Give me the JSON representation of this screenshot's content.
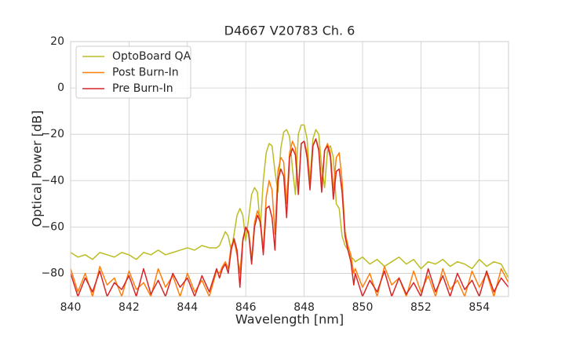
{
  "chart_data": {
    "type": "line",
    "title": "D4667 V20783 Ch. 6",
    "x_label": "Wavelength [nm]",
    "y_label": "Optical Power [dB]",
    "x": [
      840,
      840.25,
      840.5,
      840.75,
      841,
      841.25,
      841.5,
      841.75,
      842,
      842.25,
      842.5,
      842.75,
      843,
      843.25,
      843.5,
      843.75,
      844,
      844.25,
      844.5,
      844.75,
      845,
      845.1,
      845.2,
      845.3,
      845.4,
      845.5,
      845.6,
      845.7,
      845.8,
      845.9,
      846,
      846.1,
      846.2,
      846.3,
      846.4,
      846.5,
      846.6,
      846.7,
      846.8,
      846.9,
      847,
      847.1,
      847.2,
      847.3,
      847.4,
      847.5,
      847.6,
      847.7,
      847.8,
      847.9,
      848,
      848.1,
      848.2,
      848.3,
      848.4,
      848.5,
      848.6,
      848.7,
      848.8,
      848.9,
      849,
      849.1,
      849.2,
      849.3,
      849.4,
      849.5,
      849.6,
      849.7,
      849.75,
      850,
      850.25,
      850.5,
      850.75,
      851,
      851.25,
      851.5,
      851.75,
      852,
      852.25,
      852.5,
      852.75,
      853,
      853.25,
      853.5,
      853.75,
      854,
      854.25,
      854.5,
      854.75,
      855
    ],
    "series": [
      {
        "name": "OptoBoard QA",
        "color": "#bcbd22",
        "values": [
          -71,
          -73,
          -72,
          -74,
          -71,
          -72,
          -73,
          -71,
          -72,
          -74,
          -71,
          -72,
          -70,
          -72,
          -71,
          -70,
          -69,
          -70,
          -68,
          -69,
          -69,
          -68,
          -65,
          -62,
          -64,
          -70,
          -63,
          -55,
          -52,
          -55,
          -66,
          -56,
          -46,
          -43,
          -45,
          -60,
          -40,
          -28,
          -24,
          -25,
          -36,
          -45,
          -26,
          -19,
          -18,
          -21,
          -35,
          -46,
          -20,
          -16,
          -16,
          -22,
          -40,
          -22,
          -18,
          -20,
          -34,
          -43,
          -27,
          -25,
          -30,
          -50,
          -52,
          -64,
          -68,
          -70,
          -73,
          -74,
          -75,
          -73,
          -76,
          -74,
          -77,
          -75,
          -73,
          -76,
          -74,
          -78,
          -75,
          -76,
          -74,
          -77,
          -75,
          -76,
          -78,
          -74,
          -77,
          -75,
          -76,
          -82
        ]
      },
      {
        "name": "Post Burn-In",
        "color": "#ff7f0e",
        "values": [
          -78,
          -88,
          -80,
          -90,
          -77,
          -85,
          -82,
          -90,
          -79,
          -87,
          -84,
          -90,
          -78,
          -86,
          -81,
          -90,
          -80,
          -88,
          -83,
          -90,
          -79,
          -80,
          -77,
          -75,
          -78,
          -68,
          -66,
          -72,
          -80,
          -65,
          -60,
          -62,
          -74,
          -58,
          -53,
          -57,
          -70,
          -47,
          -40,
          -44,
          -63,
          -36,
          -30,
          -32,
          -50,
          -28,
          -23,
          -26,
          -45,
          -24,
          -23,
          -28,
          -43,
          -25,
          -22,
          -26,
          -42,
          -27,
          -24,
          -28,
          -44,
          -30,
          -28,
          -40,
          -62,
          -68,
          -72,
          -80,
          -78,
          -86,
          -80,
          -90,
          -77,
          -85,
          -82,
          -90,
          -79,
          -88,
          -81,
          -90,
          -78,
          -87,
          -83,
          -90,
          -79,
          -86,
          -80,
          -90,
          -78,
          -84
        ]
      },
      {
        "name": "Pre Burn-In",
        "color": "#d62728",
        "values": [
          -80,
          -90,
          -82,
          -88,
          -79,
          -90,
          -84,
          -87,
          -81,
          -90,
          -78,
          -89,
          -83,
          -90,
          -80,
          -86,
          -82,
          -90,
          -81,
          -88,
          -78,
          -82,
          -78,
          -76,
          -80,
          -70,
          -65,
          -70,
          -86,
          -66,
          -60,
          -63,
          -76,
          -60,
          -55,
          -58,
          -72,
          -52,
          -51,
          -56,
          -70,
          -40,
          -35,
          -38,
          -56,
          -30,
          -26,
          -29,
          -46,
          -24,
          -23,
          -30,
          -44,
          -25,
          -22,
          -27,
          -45,
          -27,
          -25,
          -30,
          -48,
          -36,
          -35,
          -45,
          -64,
          -70,
          -75,
          -85,
          -80,
          -90,
          -83,
          -88,
          -79,
          -90,
          -82,
          -89,
          -84,
          -90,
          -78,
          -88,
          -81,
          -90,
          -80,
          -87,
          -83,
          -90,
          -79,
          -88,
          -82,
          -86
        ]
      }
    ],
    "xlim": [
      840,
      855
    ],
    "xticks": [
      840,
      842,
      844,
      846,
      848,
      850,
      852,
      854
    ],
    "ylim": [
      -90,
      20
    ],
    "yticks": [
      {
        "value": -80,
        "label": "−80"
      },
      {
        "value": -60,
        "label": "−60"
      },
      {
        "value": -40,
        "label": "−40"
      },
      {
        "value": -20,
        "label": "−20"
      },
      0,
      20
    ],
    "grid": true,
    "legend": "upper left"
  }
}
